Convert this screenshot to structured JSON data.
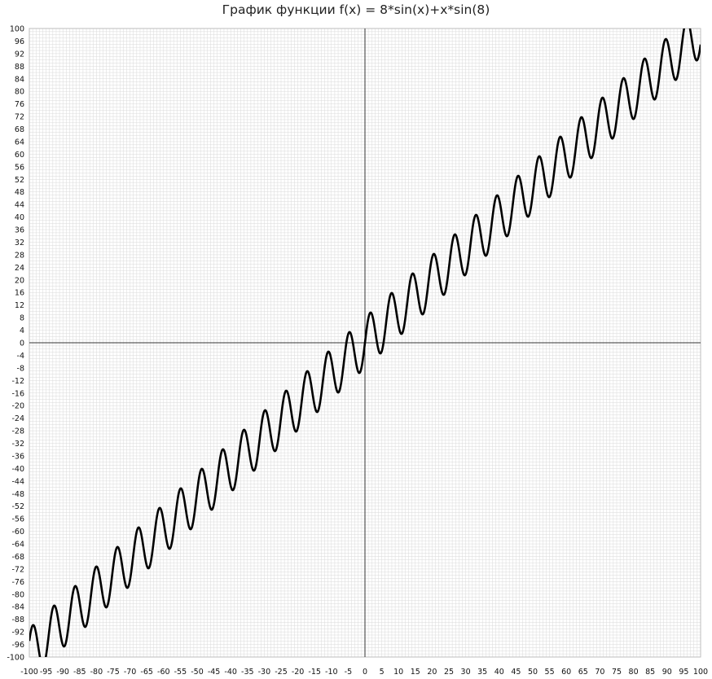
{
  "chart_data": {
    "type": "line",
    "title": "График функции f(x) = 8*sin(x)+x*sin(8)",
    "function": "8*sin(x)+x*sin(8)",
    "xlim": [
      -100,
      100
    ],
    "ylim": [
      -100,
      100
    ],
    "x_ticks": [
      -100,
      -95,
      -90,
      -85,
      -80,
      -75,
      -70,
      -65,
      -60,
      -55,
      -50,
      -45,
      -40,
      -35,
      -30,
      -25,
      -20,
      -15,
      -10,
      -5,
      0,
      5,
      10,
      15,
      20,
      25,
      30,
      35,
      40,
      45,
      50,
      55,
      60,
      65,
      70,
      75,
      80,
      85,
      90,
      95,
      100
    ],
    "y_ticks": [
      -100,
      -96,
      -92,
      -88,
      -84,
      -80,
      -76,
      -72,
      -68,
      -64,
      -60,
      -56,
      -52,
      -48,
      -44,
      -40,
      -36,
      -32,
      -28,
      -24,
      -20,
      -16,
      -12,
      -8,
      -4,
      0,
      4,
      8,
      12,
      16,
      20,
      24,
      28,
      32,
      36,
      40,
      44,
      48,
      52,
      56,
      60,
      64,
      68,
      72,
      76,
      80,
      84,
      88,
      92,
      96,
      100
    ],
    "grid": true,
    "axes_through_origin": true,
    "series": [
      {
        "color": "#000000"
      }
    ]
  },
  "colors": {
    "background": "#ffffff",
    "grid": "#dadada",
    "axis": "#333333",
    "curve": "#000000"
  }
}
